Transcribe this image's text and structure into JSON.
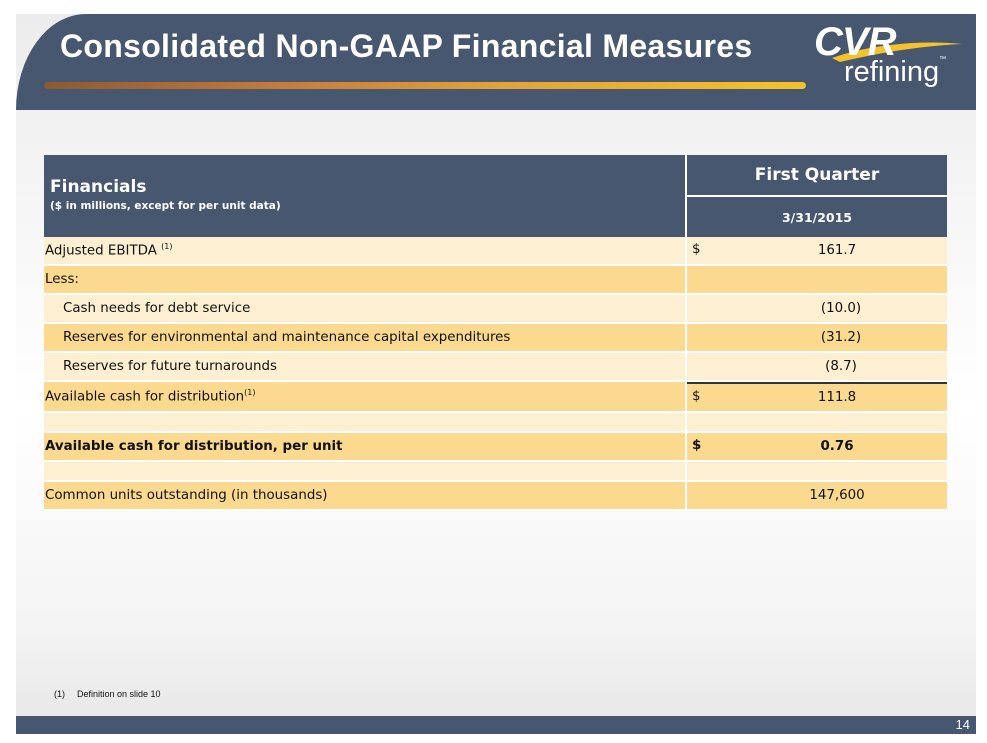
{
  "slide": {
    "title": "Consolidated Non-GAAP Financial Measures",
    "logo": {
      "brand": "CVR",
      "sub": "refining",
      "tm": "™"
    },
    "page_number": "14",
    "colors": {
      "header": "#47576f",
      "row_light": "#fdefd1",
      "row_dark": "#fbd98e",
      "accent": "#f4c22a"
    }
  },
  "table": {
    "header_title": "Financials",
    "header_subtitle": "($ in millions, except for per unit data)",
    "period": "First Quarter",
    "date": "3/31/2015",
    "rows": [
      {
        "label": "Adjusted EBITDA",
        "sup": "(1)",
        "currency": "$",
        "value": "161.7"
      },
      {
        "label": "Less:",
        "value": ""
      },
      {
        "label": "Cash needs for debt service",
        "value": "(10.0)"
      },
      {
        "label": "Reserves for environmental and maintenance capital expenditures",
        "value": "(31.2)"
      },
      {
        "label": "Reserves for future turnarounds",
        "value": "(8.7)"
      },
      {
        "label": "Available cash for distribution",
        "sup": "(1)",
        "currency": "$",
        "value": "111.8"
      },
      {
        "label": "Available cash for distribution, per unit",
        "currency": "$",
        "value": "0.76"
      },
      {
        "label": "Common units outstanding (in thousands)",
        "value": "147,600"
      }
    ]
  },
  "footnote": {
    "marker": "(1)",
    "text": "Definition on slide 10"
  }
}
